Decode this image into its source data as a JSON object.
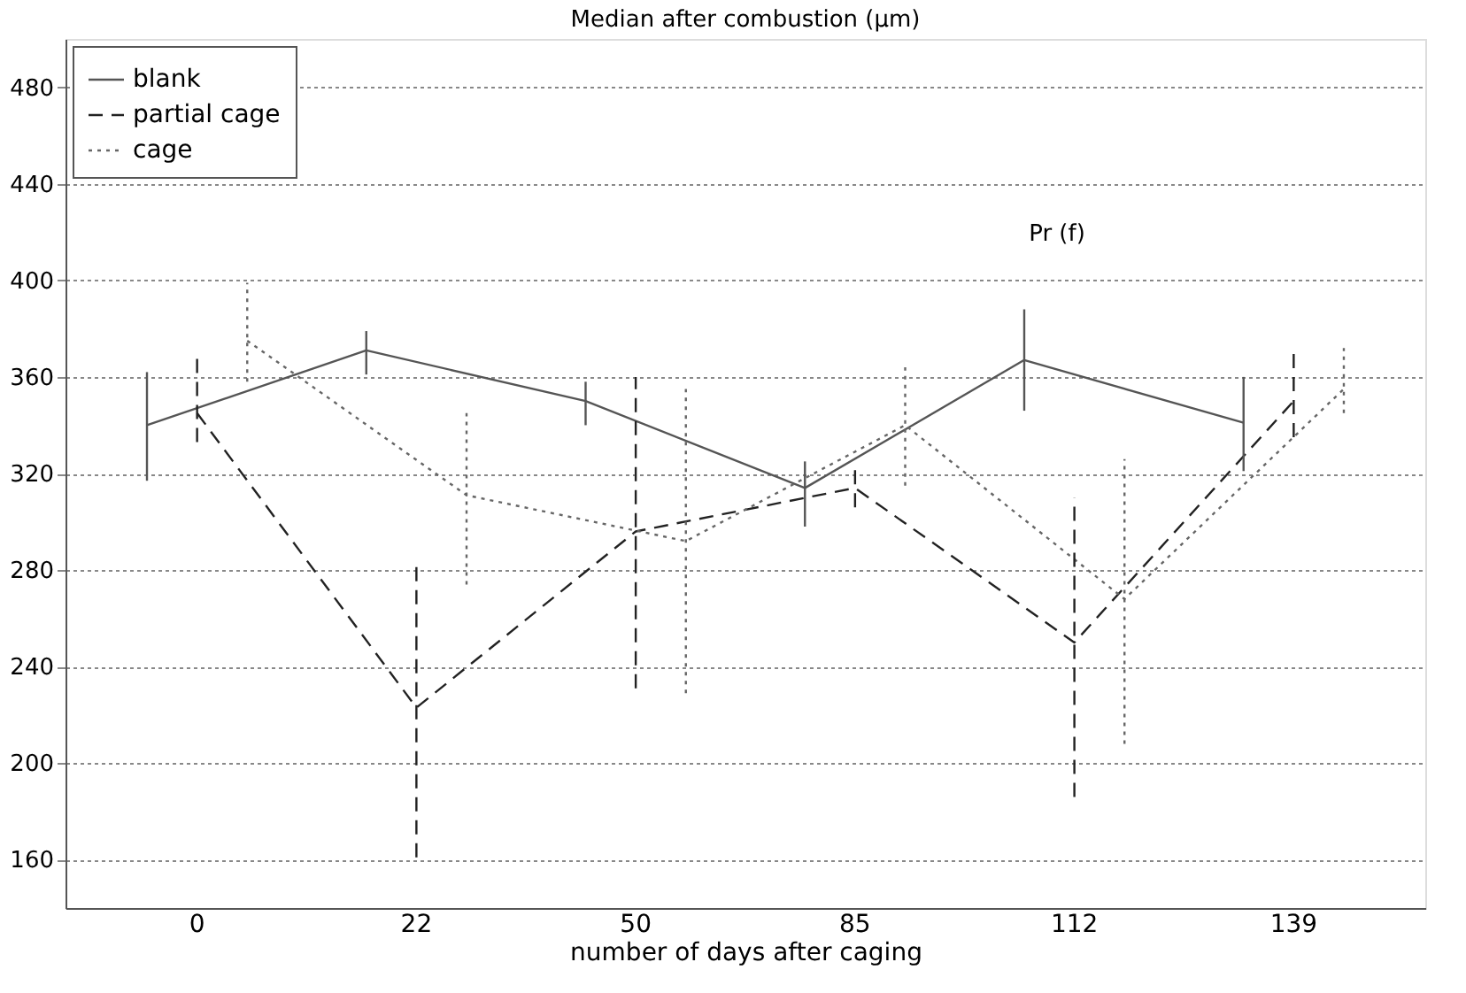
{
  "chart_data": {
    "type": "line",
    "title": "Median after combustion (µm)",
    "xlabel": "number of days after caging",
    "categories": [
      "0",
      "22",
      "50",
      "85",
      "112",
      "139"
    ],
    "series": [
      {
        "name": "blank",
        "color": "#555555",
        "line_style": "solid",
        "values": [
          340,
          371,
          350,
          314,
          367,
          341
        ],
        "errors": [
          [
            317,
            362
          ],
          [
            361,
            379
          ],
          [
            340,
            358
          ],
          [
            298,
            325
          ],
          [
            346,
            388
          ],
          [
            321,
            360
          ]
        ]
      },
      {
        "name": "partial cage",
        "color": "#222222",
        "line_style": "dashed",
        "values": [
          345,
          223,
          296,
          314,
          250,
          350
        ],
        "errors": [
          [
            333,
            368
          ],
          [
            161,
            282
          ],
          [
            231,
            360
          ],
          [
            306,
            322
          ],
          [
            186,
            310
          ],
          [
            335,
            370
          ]
        ]
      },
      {
        "name": "cage",
        "color": "#666666",
        "line_style": "dotted",
        "values": [
          375,
          311,
          292,
          340,
          268,
          355
        ],
        "errors": [
          [
            358,
            399
          ],
          [
            274,
            345
          ],
          [
            229,
            355
          ],
          [
            315,
            364
          ],
          [
            208,
            326
          ],
          [
            345,
            372
          ]
        ]
      }
    ],
    "ylim": [
      140,
      500
    ],
    "yticks": [
      160,
      200,
      240,
      280,
      320,
      360,
      400,
      440,
      480
    ],
    "grid": "y",
    "legend": "top left",
    "marker": "none",
    "annotations": [
      "Pr (f)"
    ]
  }
}
